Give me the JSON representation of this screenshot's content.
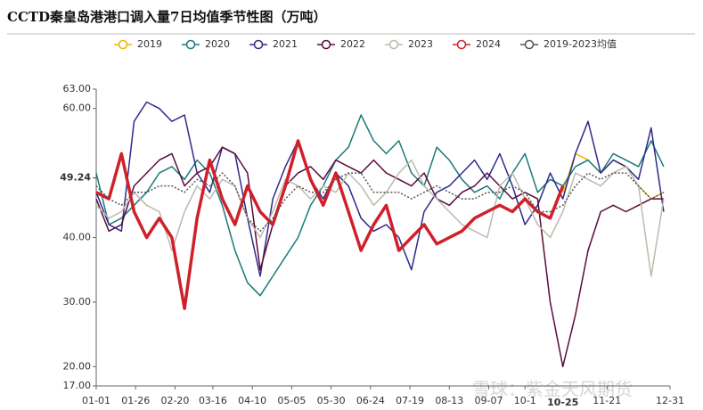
{
  "chart_data": {
    "type": "line",
    "title": "CCTD秦皇岛港港口调入量7日均值季节性图（万吨）",
    "watermark": "雪球：紫金天风期货",
    "x": [
      0,
      8,
      16,
      24,
      32,
      40,
      48,
      56,
      64,
      72,
      80,
      88,
      96,
      104,
      112,
      120,
      128,
      136,
      144,
      152,
      160,
      168,
      176,
      184,
      192,
      200,
      208,
      216,
      224,
      232,
      240,
      248,
      256,
      264,
      272,
      280,
      288,
      296,
      304,
      312,
      320,
      328,
      336,
      344,
      352,
      360
    ],
    "xlim": [
      0,
      364
    ],
    "xticks": [
      {
        "value": 0,
        "label": "01-01"
      },
      {
        "value": 25,
        "label": "01-26"
      },
      {
        "value": 50,
        "label": "02-20"
      },
      {
        "value": 74,
        "label": "03-16"
      },
      {
        "value": 99,
        "label": "04-10"
      },
      {
        "value": 124,
        "label": "05-05"
      },
      {
        "value": 149,
        "label": "05-30"
      },
      {
        "value": 174,
        "label": "06-24"
      },
      {
        "value": 199,
        "label": "07-19"
      },
      {
        "value": 224,
        "label": "08-13"
      },
      {
        "value": 249,
        "label": "09-07"
      },
      {
        "value": 272,
        "label": "10-1"
      },
      {
        "value": 324,
        "label": "11-21"
      },
      {
        "value": 364,
        "label": "12-31"
      }
    ],
    "x_highlight": {
      "value": 296,
      "label": "10-25"
    },
    "ylim": [
      17,
      63
    ],
    "yticks": [
      {
        "value": 17,
        "label": "17.00"
      },
      {
        "value": 20,
        "label": "20.00"
      },
      {
        "value": 30,
        "label": "30.00"
      },
      {
        "value": 40,
        "label": "40.00"
      },
      {
        "value": 60,
        "label": "60.00"
      },
      {
        "value": 63,
        "label": "63.00"
      }
    ],
    "y_highlight": 49.24,
    "series": [
      {
        "name": "2019",
        "color": "#f0b400",
        "width": 1.5,
        "values": [
          null,
          null,
          null,
          null,
          null,
          null,
          null,
          null,
          null,
          null,
          null,
          null,
          null,
          null,
          null,
          null,
          null,
          null,
          null,
          null,
          null,
          null,
          null,
          null,
          null,
          null,
          null,
          null,
          null,
          null,
          null,
          null,
          null,
          null,
          null,
          null,
          null,
          47,
          53,
          52,
          50,
          52,
          51,
          48,
          46,
          47
        ]
      },
      {
        "name": "2020",
        "color": "#1a7a78",
        "width": 1.5,
        "values": [
          50,
          42,
          43,
          45,
          47,
          50,
          51,
          49,
          52,
          50,
          45,
          38,
          33,
          31,
          34,
          37,
          40,
          45,
          48,
          52,
          54,
          59,
          55,
          53,
          55,
          50,
          48,
          54,
          52,
          49,
          47,
          48,
          46,
          50,
          53,
          47,
          49,
          48,
          51,
          52,
          50,
          53,
          52,
          51,
          55,
          51
        ]
      },
      {
        "name": "2021",
        "color": "#2e2a8a",
        "width": 1.5,
        "values": [
          47,
          42,
          41,
          58,
          61,
          60,
          58,
          59,
          50,
          47,
          54,
          53,
          43,
          34,
          46,
          51,
          55,
          49,
          46,
          50,
          48,
          43,
          41,
          42,
          40,
          35,
          44,
          47,
          48,
          50,
          52,
          49,
          53,
          48,
          42,
          45,
          50,
          46,
          53,
          58,
          50,
          52,
          51,
          49,
          57,
          44
        ]
      },
      {
        "name": "2022",
        "color": "#5a0a3c",
        "width": 1.5,
        "values": [
          46,
          41,
          42,
          48,
          50,
          52,
          53,
          48,
          50,
          51,
          54,
          53,
          50,
          35,
          42,
          48,
          50,
          51,
          49,
          52,
          51,
          50,
          52,
          50,
          49,
          48,
          50,
          46,
          45,
          47,
          48,
          50,
          48,
          46,
          47,
          46,
          30,
          20,
          28,
          38,
          44,
          45,
          44,
          45,
          46,
          46
        ]
      },
      {
        "name": "2023",
        "color": "#bfb8ae",
        "width": 1.5,
        "values": [
          45,
          43,
          44,
          47,
          45,
          44,
          38,
          44,
          48,
          46,
          49,
          48,
          43,
          40,
          44,
          49,
          48,
          46,
          48,
          47,
          50,
          48,
          45,
          47,
          50,
          52,
          48,
          46,
          44,
          42,
          41,
          40,
          48,
          50,
          46,
          42,
          40,
          44,
          50,
          49,
          48,
          50,
          51,
          48,
          34,
          46
        ]
      },
      {
        "name": "2024",
        "color": "#d0202a",
        "width": 3.5,
        "values": [
          47,
          46,
          53,
          44,
          40,
          43,
          40,
          29,
          43,
          52,
          46,
          42,
          48,
          44,
          42,
          48,
          55,
          49,
          45,
          50,
          44,
          38,
          42,
          45,
          38,
          40,
          42,
          39,
          40,
          41,
          43,
          44,
          45,
          44,
          46,
          44,
          43,
          48,
          null,
          null,
          null,
          null,
          null,
          null,
          null,
          null
        ]
      },
      {
        "name": "2019-2023均值",
        "color": "#555555",
        "width": 1.5,
        "dash": true,
        "values": [
          48,
          46,
          45,
          47,
          47,
          48,
          48,
          47,
          49,
          48,
          50,
          48,
          43,
          41,
          43,
          46,
          48,
          47,
          47,
          49,
          50,
          50,
          47,
          47,
          47,
          46,
          47,
          48,
          47,
          46,
          46,
          47,
          47,
          48,
          47,
          44,
          44,
          45,
          48,
          50,
          49,
          50,
          50,
          48,
          46,
          47
        ]
      }
    ]
  }
}
